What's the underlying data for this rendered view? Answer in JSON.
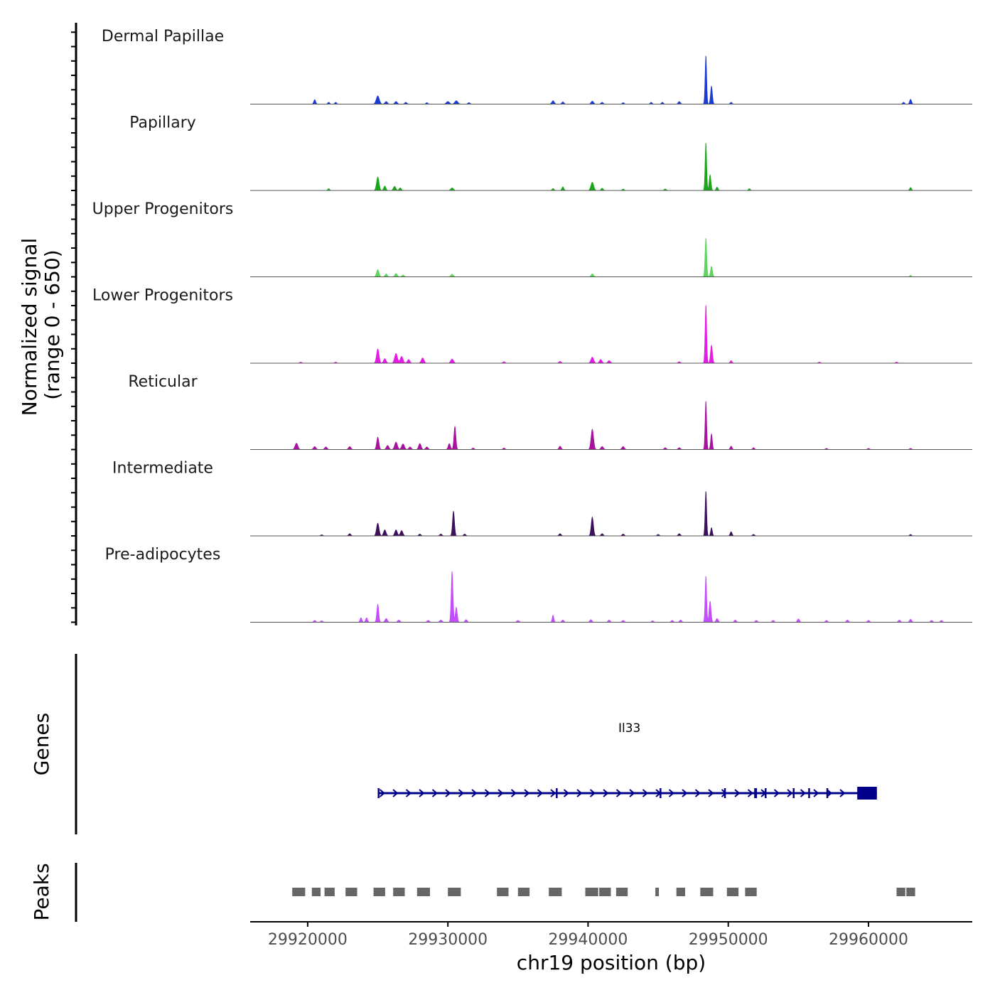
{
  "chart_data": {
    "type": "area",
    "chromosome": "chr19",
    "xlabel": "chr19 position (bp)",
    "xlim": [
      29915900,
      29967400
    ],
    "xticks": [
      29920000,
      29930000,
      29940000,
      29950000,
      29960000
    ],
    "xtick_labels": [
      "29920000",
      "29930000",
      "29940000",
      "29950000",
      "29960000"
    ],
    "ylabel_line1": "Normalized signal",
    "ylabel_line2": "(range 0 - 650)",
    "ylim": [
      0,
      650
    ],
    "track_labels": {
      "genes": "Genes",
      "peaks": "Peaks"
    },
    "signal_start": 29916000,
    "signal_end": 29965500,
    "tracks": [
      {
        "name": "Dermal Papillae",
        "color": "#1a3bd6",
        "peaks": [
          [
            29920500,
            60,
            70
          ],
          [
            29921500,
            25,
            70
          ],
          [
            29922000,
            25,
            70
          ],
          [
            29925000,
            110,
            110
          ],
          [
            29925600,
            35,
            90
          ],
          [
            29926300,
            35,
            90
          ],
          [
            29927000,
            25,
            80
          ],
          [
            29928500,
            20,
            70
          ],
          [
            29930000,
            35,
            110
          ],
          [
            29930600,
            45,
            110
          ],
          [
            29931500,
            20,
            80
          ],
          [
            29937500,
            45,
            90
          ],
          [
            29938200,
            30,
            80
          ],
          [
            29940300,
            40,
            90
          ],
          [
            29941000,
            25,
            80
          ],
          [
            29942500,
            20,
            70
          ],
          [
            29944500,
            25,
            70
          ],
          [
            29945300,
            25,
            70
          ],
          [
            29946500,
            35,
            80
          ],
          [
            29948400,
            650,
            55
          ],
          [
            29948800,
            240,
            65
          ],
          [
            29950200,
            25,
            70
          ],
          [
            29962500,
            25,
            70
          ],
          [
            29963000,
            65,
            70
          ]
        ]
      },
      {
        "name": "Papillary",
        "color": "#1aa61a",
        "peaks": [
          [
            29921500,
            25,
            70
          ],
          [
            29925000,
            180,
            90
          ],
          [
            29925500,
            60,
            80
          ],
          [
            29926200,
            55,
            90
          ],
          [
            29926600,
            35,
            80
          ],
          [
            29930300,
            35,
            100
          ],
          [
            29937500,
            25,
            80
          ],
          [
            29938200,
            50,
            70
          ],
          [
            29940300,
            110,
            100
          ],
          [
            29941000,
            30,
            80
          ],
          [
            29942500,
            20,
            70
          ],
          [
            29945500,
            20,
            80
          ],
          [
            29948400,
            640,
            55
          ],
          [
            29948700,
            210,
            65
          ],
          [
            29949200,
            45,
            70
          ],
          [
            29951500,
            25,
            70
          ],
          [
            29963000,
            40,
            70
          ]
        ]
      },
      {
        "name": "Upper Progenitors",
        "color": "#5cd65c",
        "peaks": [
          [
            29925000,
            95,
            90
          ],
          [
            29925600,
            40,
            80
          ],
          [
            29926300,
            45,
            90
          ],
          [
            29926800,
            25,
            80
          ],
          [
            29930300,
            35,
            90
          ],
          [
            29940300,
            40,
            90
          ],
          [
            29948400,
            520,
            60
          ],
          [
            29948800,
            140,
            70
          ],
          [
            29963000,
            20,
            60
          ]
        ]
      },
      {
        "name": "Lower Progenitors",
        "color": "#e61ae6",
        "peaks": [
          [
            29919500,
            15,
            80
          ],
          [
            29922000,
            15,
            80
          ],
          [
            29925000,
            190,
            90
          ],
          [
            29925500,
            60,
            90
          ],
          [
            29926300,
            130,
            100
          ],
          [
            29926700,
            90,
            100
          ],
          [
            29927200,
            50,
            90
          ],
          [
            29928200,
            70,
            100
          ],
          [
            29930300,
            55,
            100
          ],
          [
            29934000,
            20,
            80
          ],
          [
            29938000,
            25,
            80
          ],
          [
            29940300,
            80,
            100
          ],
          [
            29940900,
            50,
            90
          ],
          [
            29941500,
            35,
            90
          ],
          [
            29946500,
            20,
            80
          ],
          [
            29948400,
            780,
            55
          ],
          [
            29948800,
            240,
            70
          ],
          [
            29950200,
            35,
            70
          ],
          [
            29956500,
            15,
            80
          ],
          [
            29962000,
            15,
            80
          ]
        ]
      },
      {
        "name": "Reticular",
        "color": "#a8129f",
        "peaks": [
          [
            29919200,
            85,
            100
          ],
          [
            29920500,
            40,
            90
          ],
          [
            29921300,
            35,
            90
          ],
          [
            29923000,
            40,
            90
          ],
          [
            29925000,
            165,
            80
          ],
          [
            29925700,
            55,
            90
          ],
          [
            29926300,
            100,
            100
          ],
          [
            29926800,
            75,
            100
          ],
          [
            29927300,
            35,
            90
          ],
          [
            29928000,
            80,
            90
          ],
          [
            29928500,
            35,
            90
          ],
          [
            29930100,
            80,
            80
          ],
          [
            29930500,
            310,
            70
          ],
          [
            29931800,
            20,
            80
          ],
          [
            29934000,
            20,
            80
          ],
          [
            29938000,
            45,
            80
          ],
          [
            29940300,
            270,
            90
          ],
          [
            29941000,
            40,
            90
          ],
          [
            29942500,
            40,
            90
          ],
          [
            29945500,
            25,
            80
          ],
          [
            29946500,
            25,
            80
          ],
          [
            29948400,
            650,
            55
          ],
          [
            29948800,
            210,
            60
          ],
          [
            29950200,
            45,
            70
          ],
          [
            29951800,
            25,
            70
          ],
          [
            29957000,
            15,
            80
          ],
          [
            29960000,
            15,
            80
          ],
          [
            29963000,
            15,
            80
          ]
        ]
      },
      {
        "name": "Intermediate",
        "color": "#3d0f5c",
        "peaks": [
          [
            29921000,
            15,
            80
          ],
          [
            29923000,
            30,
            80
          ],
          [
            29925000,
            170,
            90
          ],
          [
            29925500,
            80,
            90
          ],
          [
            29926300,
            80,
            90
          ],
          [
            29926700,
            70,
            90
          ],
          [
            29928000,
            25,
            80
          ],
          [
            29929500,
            25,
            80
          ],
          [
            29930400,
            330,
            70
          ],
          [
            29931200,
            25,
            80
          ],
          [
            29938000,
            30,
            80
          ],
          [
            29940300,
            250,
            80
          ],
          [
            29941000,
            30,
            80
          ],
          [
            29942500,
            25,
            80
          ],
          [
            29945000,
            20,
            80
          ],
          [
            29946500,
            30,
            80
          ],
          [
            29948400,
            600,
            55
          ],
          [
            29948800,
            110,
            60
          ],
          [
            29950200,
            55,
            70
          ],
          [
            29951800,
            20,
            80
          ],
          [
            29963000,
            20,
            70
          ]
        ]
      },
      {
        "name": "Pre-adipocytes",
        "color": "#c44dff",
        "peaks": [
          [
            29920500,
            25,
            80
          ],
          [
            29921000,
            20,
            80
          ],
          [
            29923800,
            60,
            70
          ],
          [
            29924200,
            60,
            70
          ],
          [
            29925000,
            240,
            70
          ],
          [
            29925600,
            50,
            90
          ],
          [
            29926500,
            30,
            90
          ],
          [
            29928600,
            25,
            90
          ],
          [
            29929500,
            30,
            90
          ],
          [
            29930300,
            680,
            65
          ],
          [
            29930600,
            200,
            70
          ],
          [
            29931300,
            35,
            80
          ],
          [
            29935000,
            25,
            90
          ],
          [
            29937500,
            95,
            60
          ],
          [
            29938200,
            30,
            80
          ],
          [
            29940200,
            35,
            80
          ],
          [
            29941500,
            30,
            80
          ],
          [
            29942500,
            25,
            80
          ],
          [
            29944600,
            20,
            80
          ],
          [
            29946000,
            25,
            80
          ],
          [
            29946600,
            30,
            80
          ],
          [
            29948400,
            620,
            55
          ],
          [
            29948700,
            280,
            70
          ],
          [
            29949200,
            50,
            80
          ],
          [
            29950500,
            30,
            80
          ],
          [
            29952000,
            25,
            80
          ],
          [
            29953200,
            25,
            80
          ],
          [
            29955000,
            45,
            80
          ],
          [
            29957000,
            25,
            80
          ],
          [
            29958500,
            30,
            80
          ],
          [
            29960000,
            25,
            80
          ],
          [
            29962200,
            30,
            80
          ],
          [
            29963000,
            40,
            80
          ],
          [
            29964500,
            25,
            80
          ],
          [
            29965200,
            25,
            80
          ]
        ]
      }
    ],
    "gene": {
      "name": "Il33",
      "start": 29925000,
      "end": 29960600,
      "strand": "+",
      "color": "#00008b",
      "exons": [
        [
          29925000,
          29925100
        ],
        [
          29937700,
          29937800
        ],
        [
          29945100,
          29945200
        ],
        [
          29949700,
          29949800
        ],
        [
          29951850,
          29952050
        ],
        [
          29952600,
          29952700
        ],
        [
          29954600,
          29954700
        ],
        [
          29955700,
          29955800
        ],
        [
          29957000,
          29957100
        ],
        [
          29959200,
          29960600
        ]
      ]
    },
    "peaks_bed": [
      [
        29918900,
        29919900
      ],
      [
        29920300,
        29921000
      ],
      [
        29921200,
        29922000
      ],
      [
        29922700,
        29923600
      ],
      [
        29924700,
        29925600
      ],
      [
        29926100,
        29927000
      ],
      [
        29927800,
        29928800
      ],
      [
        29930000,
        29931000
      ],
      [
        29933500,
        29934400
      ],
      [
        29935000,
        29935900
      ],
      [
        29937200,
        29938200
      ],
      [
        29939800,
        29940800
      ],
      [
        29940800,
        29941700
      ],
      [
        29942000,
        29942900
      ],
      [
        29944800,
        29945100
      ],
      [
        29946300,
        29947000
      ],
      [
        29948000,
        29949000
      ],
      [
        29949900,
        29950800
      ],
      [
        29951200,
        29952100
      ],
      [
        29962000,
        29962700
      ],
      [
        29962700,
        29963400
      ]
    ]
  }
}
